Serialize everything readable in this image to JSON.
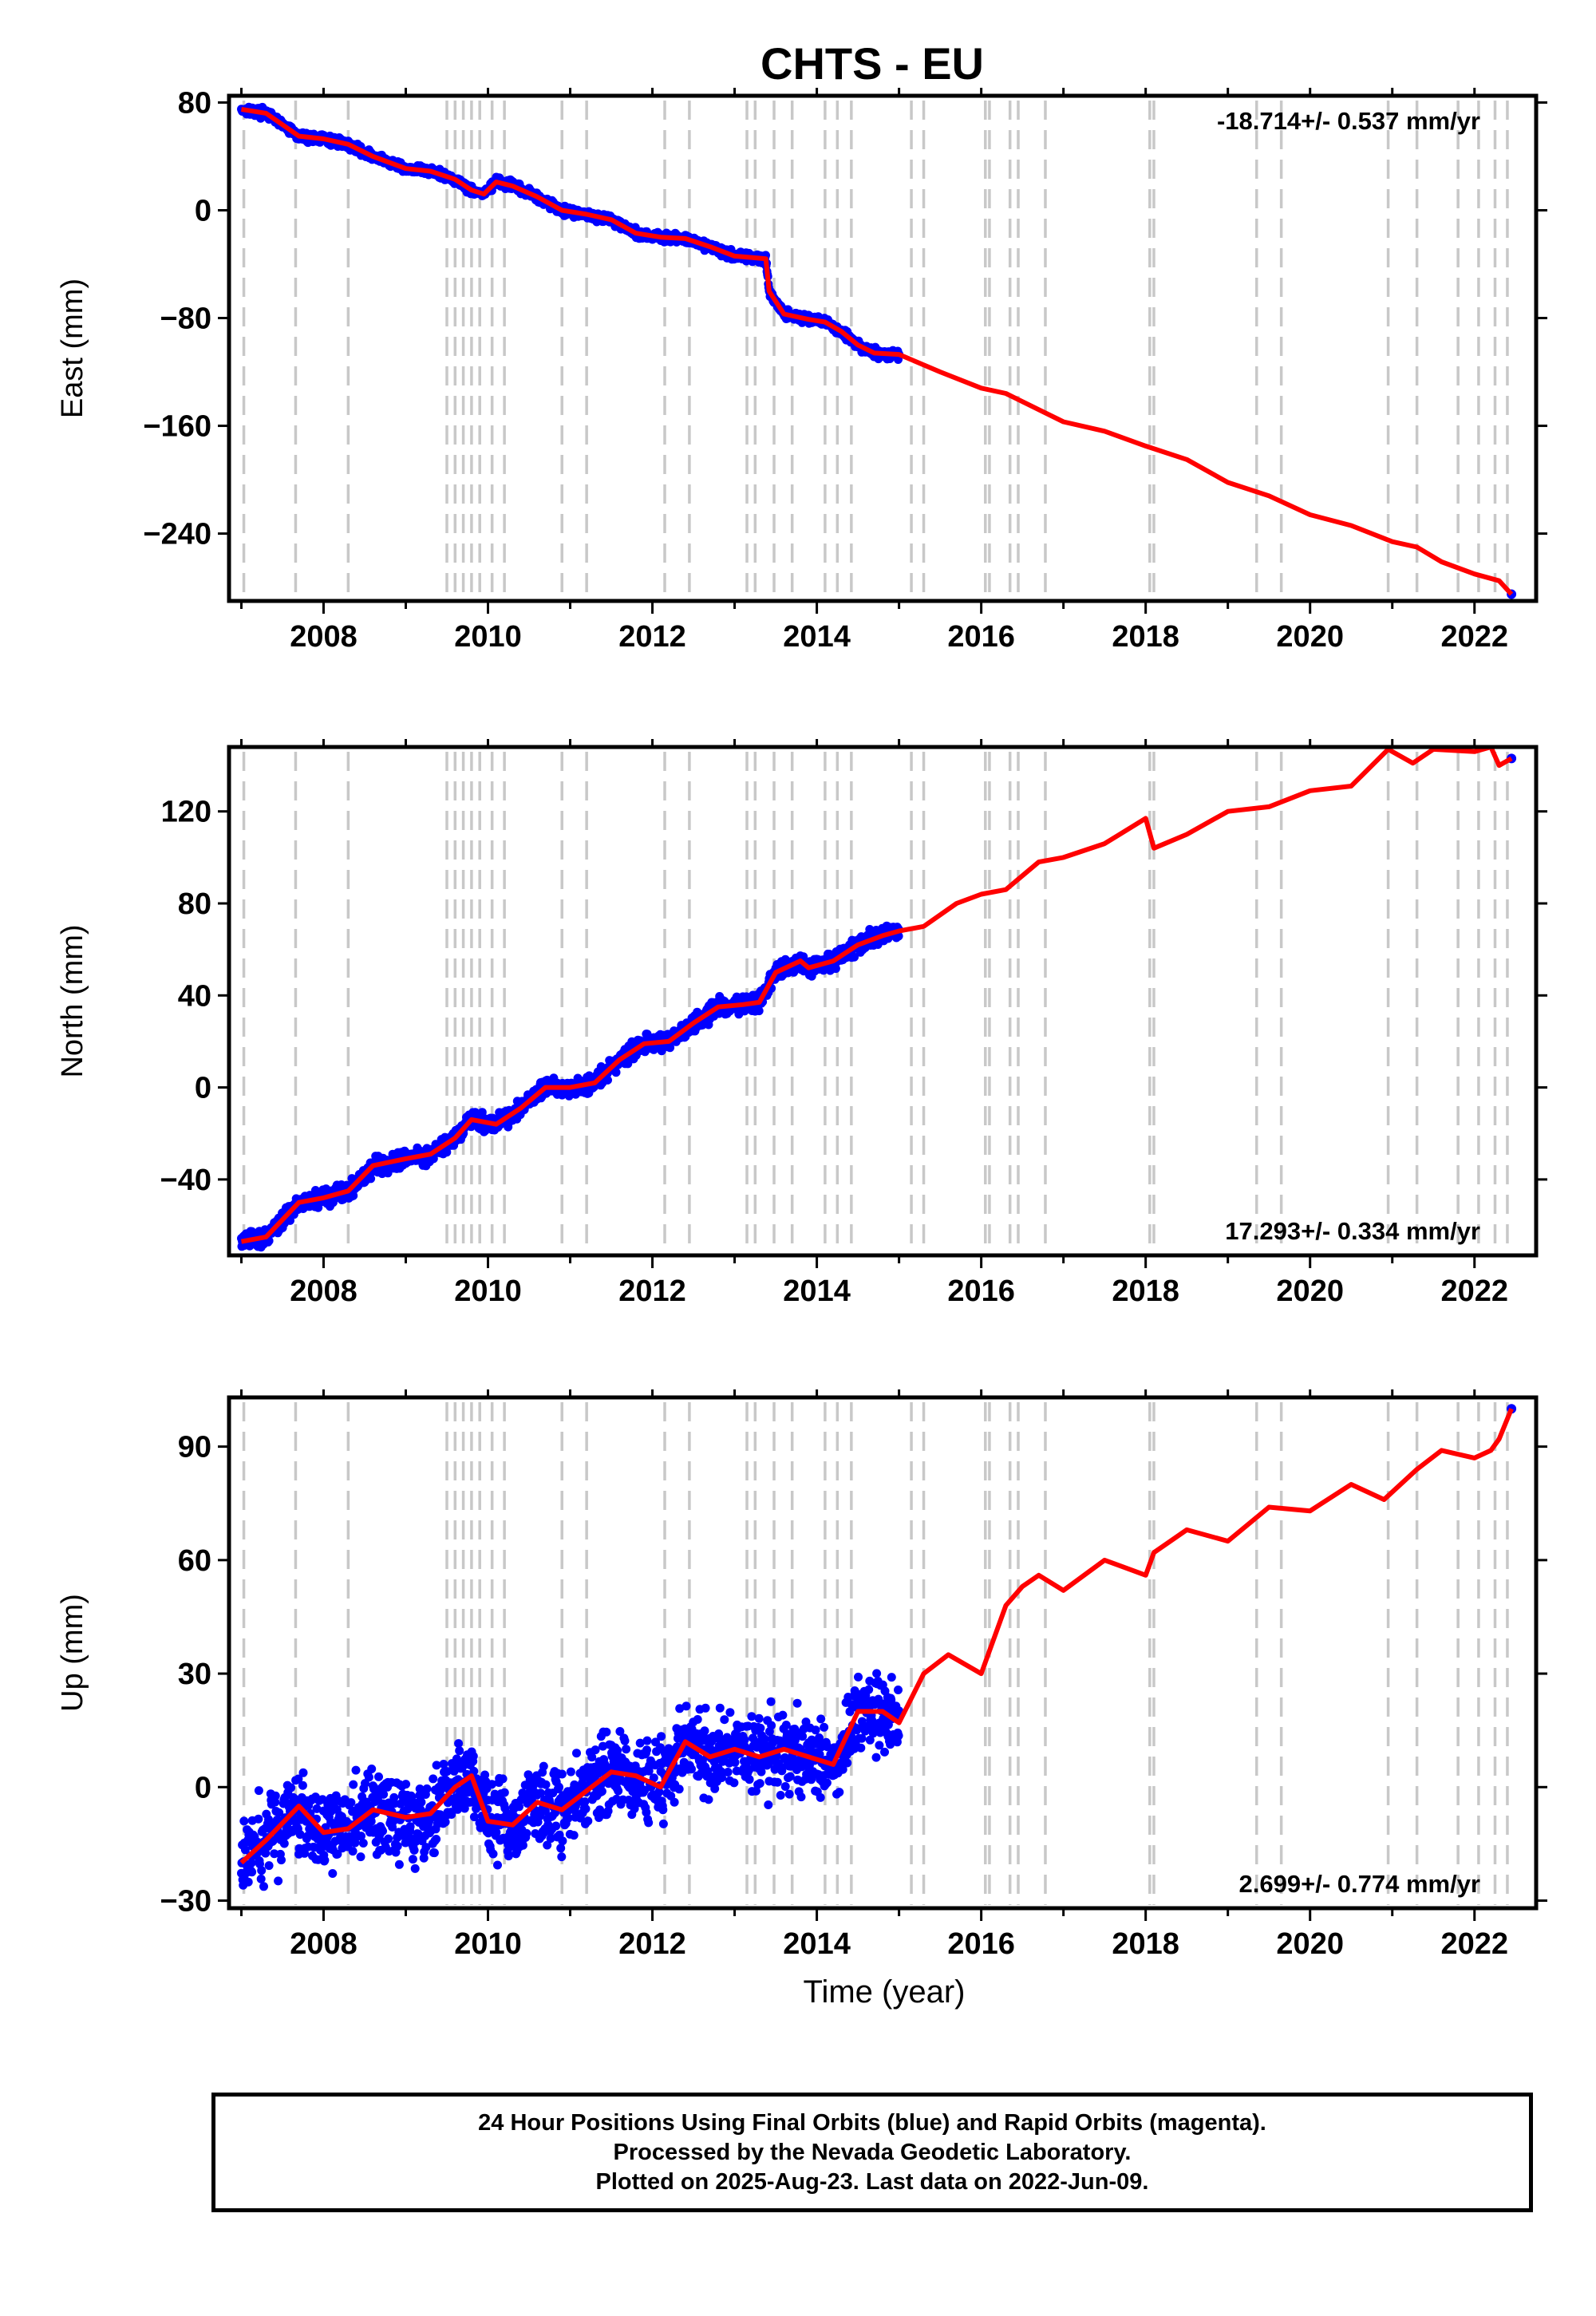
{
  "title": "CHTS - EU",
  "footer": {
    "line1": "24 Hour Positions Using Final Orbits (blue) and Rapid Orbits (magenta).",
    "line2": "Processed by the Nevada Geodetic Laboratory.",
    "line3": "Plotted on 2025-Aug-23. Last data on 2022-Jun-09."
  },
  "colors": {
    "final_orbits": "#0000ff",
    "model": "#ff0000",
    "events": "#c8c8c8",
    "axes": "#000000"
  },
  "chart_data": [
    {
      "type": "scatter",
      "component": "East",
      "ylabel": "East (mm)",
      "xlabel": "",
      "xlim": [
        2006.85,
        2022.75
      ],
      "ylim": [
        -290,
        85
      ],
      "yticks": [
        80,
        0,
        -80,
        -160,
        -240
      ],
      "xticks": [
        2008,
        2010,
        2012,
        2014,
        2016,
        2018,
        2020,
        2022
      ],
      "grid": false,
      "rate_label": "-18.714+/- 0.537 mm/yr",
      "rate_position": "top-right",
      "observed": {
        "name": "Final Orbits",
        "x": [
          2007.0,
          2007.3,
          2007.7,
          2008.0,
          2008.3,
          2008.6,
          2009.0,
          2009.3,
          2009.6,
          2009.8,
          2009.95,
          2010.1,
          2010.3,
          2010.6,
          2010.9,
          2011.2,
          2011.5,
          2011.8,
          2012.1,
          2012.4,
          2012.7,
          2013.0,
          2013.2,
          2013.38,
          2013.42,
          2013.6,
          2013.9,
          2014.1,
          2014.3,
          2014.5,
          2014.7,
          2015.0
        ],
        "y": [
          75,
          72,
          55,
          53,
          49,
          40,
          31,
          29,
          23,
          15,
          12,
          21,
          18,
          10,
          0,
          -3,
          -7,
          -17,
          -20,
          -21,
          -27,
          -34,
          -35,
          -36,
          -60,
          -77,
          -81,
          -83,
          -90,
          -100,
          -106,
          -107
        ]
      },
      "model": {
        "name": "Model",
        "x": [
          2007.0,
          2007.3,
          2007.7,
          2008.0,
          2008.3,
          2008.6,
          2009.0,
          2009.3,
          2009.6,
          2009.8,
          2009.95,
          2010.1,
          2010.3,
          2010.6,
          2010.9,
          2011.2,
          2011.5,
          2011.8,
          2012.1,
          2012.4,
          2012.7,
          2013.0,
          2013.2,
          2013.38,
          2013.42,
          2013.6,
          2013.9,
          2014.1,
          2014.3,
          2014.5,
          2014.7,
          2015.0,
          2015.5,
          2016.0,
          2016.3,
          2016.7,
          2017.0,
          2017.5,
          2018.0,
          2018.5,
          2019.0,
          2019.5,
          2020.0,
          2020.5,
          2021.0,
          2021.3,
          2021.6,
          2022.0,
          2022.3,
          2022.45
        ],
        "y": [
          75,
          72,
          55,
          53,
          49,
          40,
          31,
          29,
          23,
          15,
          12,
          21,
          18,
          10,
          0,
          -3,
          -7,
          -17,
          -20,
          -21,
          -27,
          -34,
          -35,
          -36,
          -60,
          -77,
          -81,
          -83,
          -90,
          -100,
          -106,
          -107,
          -120,
          -132,
          -136,
          -148,
          -157,
          -164,
          -175,
          -185,
          -202,
          -212,
          -226,
          -234,
          -246,
          -250,
          -261,
          -270,
          -275,
          -285
        ]
      }
    },
    {
      "type": "scatter",
      "component": "North",
      "ylabel": "North (mm)",
      "xlabel": "",
      "xlim": [
        2006.85,
        2022.75
      ],
      "ylim": [
        -73,
        148
      ],
      "yticks": [
        120,
        80,
        40,
        0,
        -40
      ],
      "xticks": [
        2008,
        2010,
        2012,
        2014,
        2016,
        2018,
        2020,
        2022
      ],
      "grid": false,
      "rate_label": "17.293+/- 0.334 mm/yr",
      "rate_position": "bottom-right",
      "observed": {
        "name": "Final Orbits",
        "x": [
          2007.0,
          2007.3,
          2007.7,
          2008.0,
          2008.3,
          2008.6,
          2009.0,
          2009.3,
          2009.6,
          2009.8,
          2010.1,
          2010.4,
          2010.7,
          2011.0,
          2011.3,
          2011.6,
          2011.9,
          2012.2,
          2012.5,
          2012.8,
          2013.1,
          2013.3,
          2013.5,
          2013.8,
          2013.9,
          2014.2,
          2014.5,
          2014.8,
          2015.0
        ],
        "y": [
          -67,
          -65,
          -50,
          -48,
          -45,
          -34,
          -31,
          -29,
          -22,
          -14,
          -16,
          -9,
          0,
          0,
          2,
          12,
          19,
          20,
          28,
          35,
          36,
          37,
          50,
          55,
          52,
          55,
          62,
          66,
          68
        ]
      },
      "model": {
        "name": "Model",
        "x": [
          2007.0,
          2007.3,
          2007.7,
          2008.0,
          2008.3,
          2008.6,
          2009.0,
          2009.3,
          2009.6,
          2009.8,
          2010.1,
          2010.4,
          2010.7,
          2011.0,
          2011.3,
          2011.6,
          2011.9,
          2012.2,
          2012.5,
          2012.8,
          2013.1,
          2013.3,
          2013.5,
          2013.8,
          2013.9,
          2014.2,
          2014.5,
          2014.8,
          2015.0,
          2015.3,
          2015.7,
          2016.0,
          2016.3,
          2016.7,
          2017.0,
          2017.5,
          2018.0,
          2018.1,
          2018.5,
          2019.0,
          2019.5,
          2020.0,
          2020.5,
          2020.95,
          2021.25,
          2021.5,
          2022.0,
          2022.2,
          2022.3,
          2022.45
        ],
        "y": [
          -67,
          -65,
          -50,
          -48,
          -45,
          -34,
          -31,
          -29,
          -22,
          -14,
          -16,
          -9,
          0,
          0,
          2,
          12,
          19,
          20,
          28,
          35,
          36,
          37,
          50,
          55,
          52,
          55,
          62,
          66,
          68,
          70,
          80,
          84,
          86,
          98,
          100,
          106,
          117,
          104,
          110,
          120,
          122,
          129,
          131,
          147,
          141,
          147,
          146,
          148,
          140,
          143
        ]
      }
    },
    {
      "type": "scatter",
      "component": "Up",
      "ylabel": "Up (mm)",
      "xlabel": "Time (year)",
      "xlim": [
        2006.85,
        2022.75
      ],
      "ylim": [
        -32,
        103
      ],
      "yticks": [
        90,
        60,
        30,
        0,
        -30
      ],
      "xticks": [
        2008,
        2010,
        2012,
        2014,
        2016,
        2018,
        2020,
        2022
      ],
      "grid": false,
      "rate_label": "2.699+/- 0.774 mm/yr",
      "rate_position": "bottom-right",
      "observed": {
        "name": "Final Orbits",
        "x": [
          2007.0,
          2007.3,
          2007.7,
          2008.0,
          2008.3,
          2008.6,
          2009.0,
          2009.3,
          2009.6,
          2009.8,
          2010.0,
          2010.3,
          2010.6,
          2010.9,
          2011.2,
          2011.5,
          2011.8,
          2012.1,
          2012.4,
          2012.7,
          2013.0,
          2013.3,
          2013.6,
          2013.9,
          2014.2,
          2014.5,
          2014.8,
          2015.0
        ],
        "y": [
          -20,
          -14,
          -5,
          -12,
          -11,
          -6,
          -8,
          -7,
          0,
          3,
          -9,
          -10,
          -4,
          -6,
          -1,
          4,
          3,
          0,
          12,
          8,
          10,
          8,
          10,
          8,
          6,
          20,
          20,
          17
        ]
      },
      "model": {
        "name": "Model",
        "x": [
          2007.0,
          2007.3,
          2007.7,
          2008.0,
          2008.3,
          2008.6,
          2009.0,
          2009.3,
          2009.6,
          2009.8,
          2010.0,
          2010.3,
          2010.6,
          2010.9,
          2011.2,
          2011.5,
          2011.8,
          2012.1,
          2012.4,
          2012.7,
          2013.0,
          2013.3,
          2013.6,
          2013.9,
          2014.2,
          2014.5,
          2014.8,
          2015.0,
          2015.3,
          2015.6,
          2016.0,
          2016.3,
          2016.5,
          2016.7,
          2017.0,
          2017.5,
          2018.0,
          2018.1,
          2018.5,
          2019.0,
          2019.5,
          2020.0,
          2020.5,
          2020.9,
          2021.3,
          2021.6,
          2022.0,
          2022.2,
          2022.3,
          2022.45
        ],
        "y": [
          -20,
          -14,
          -5,
          -12,
          -11,
          -6,
          -8,
          -7,
          0,
          3,
          -9,
          -10,
          -4,
          -6,
          -1,
          4,
          3,
          0,
          12,
          8,
          10,
          8,
          10,
          8,
          6,
          20,
          20,
          17,
          30,
          35,
          30,
          48,
          53,
          56,
          52,
          60,
          56,
          62,
          68,
          65,
          74,
          73,
          80,
          76,
          84,
          89,
          87,
          89,
          92,
          100
        ]
      }
    }
  ],
  "event_years": [
    2007.03,
    2007.66,
    2008.3,
    2009.5,
    2009.6,
    2009.7,
    2009.8,
    2009.9,
    2010.05,
    2010.2,
    2010.9,
    2011.2,
    2012.15,
    2012.45,
    2013.15,
    2013.25,
    2013.48,
    2013.7,
    2014.1,
    2014.25,
    2014.42,
    2015.15,
    2015.3,
    2016.05,
    2016.1,
    2016.35,
    2016.45,
    2016.78,
    2018.05,
    2018.1,
    2019.35,
    2019.65,
    2020.95,
    2021.3,
    2021.8,
    2022.05,
    2022.25,
    2022.4
  ]
}
